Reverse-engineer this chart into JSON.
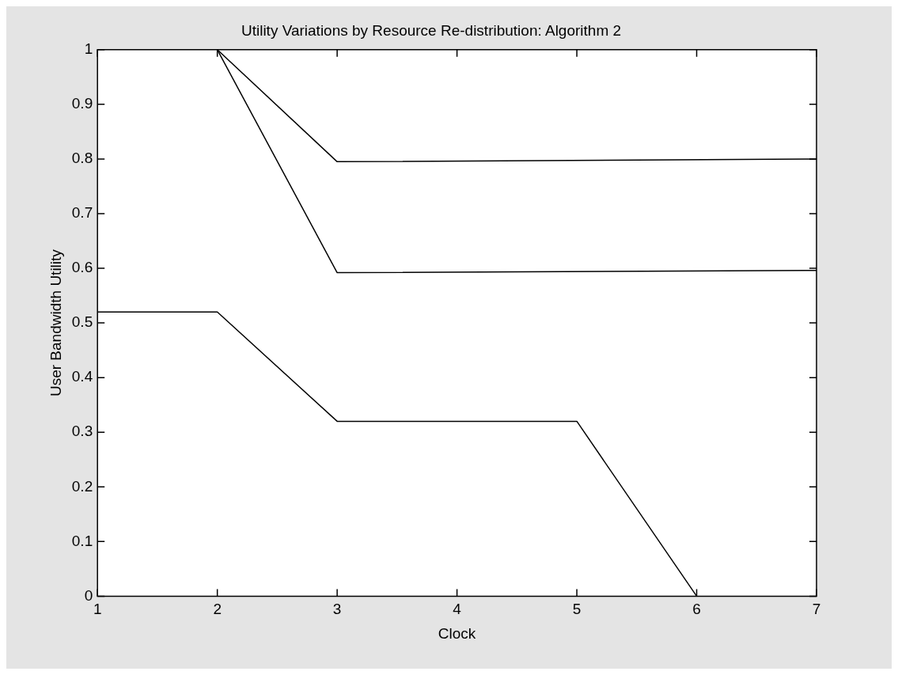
{
  "chart_data": {
    "type": "line",
    "title": "Utility Variations by Resource Re-distribution: Algorithm 2",
    "xlabel": "Clock",
    "ylabel": "User Bandwidth Utility",
    "xlim": [
      1,
      7
    ],
    "xticks": [
      1,
      2,
      3,
      4,
      5,
      6,
      7
    ],
    "ylim": [
      0,
      1
    ],
    "yticks": [
      0,
      0.1,
      0.2,
      0.3,
      0.4,
      0.5,
      0.6,
      0.7,
      0.8,
      0.9,
      1
    ],
    "grid": false,
    "legend": false,
    "marker": "none",
    "line_style": "solid",
    "series": [
      {
        "color": "#000000",
        "x": [
          2,
          3,
          7
        ],
        "values": [
          1,
          0.795,
          0.8
        ]
      },
      {
        "color": "#000000",
        "x": [
          2,
          3,
          7
        ],
        "values": [
          1,
          0.592,
          0.596
        ]
      },
      {
        "color": "#000000",
        "x": [
          1,
          2,
          3,
          5,
          6
        ],
        "values": [
          0.52,
          0.52,
          0.32,
          0.32,
          0
        ]
      }
    ]
  }
}
